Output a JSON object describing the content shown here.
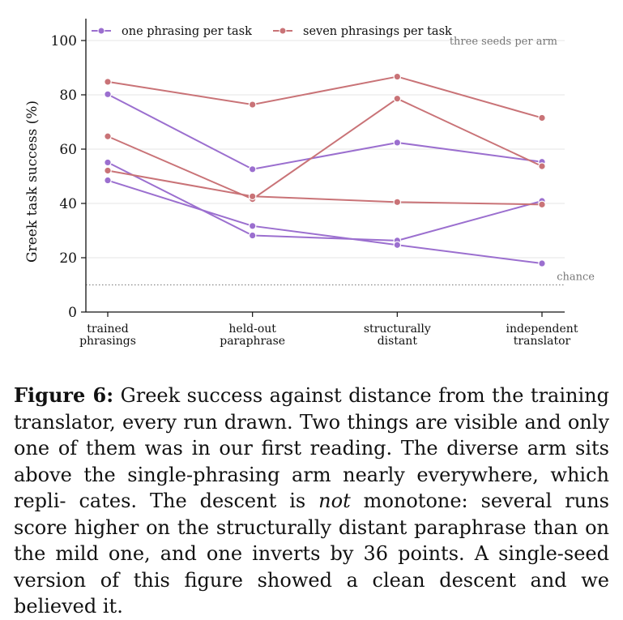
{
  "chart_data": {
    "type": "line",
    "ylabel": "Greek task success (%)",
    "ylim": [
      0,
      100
    ],
    "yticks": [
      0,
      20,
      40,
      60,
      80,
      100
    ],
    "categories": [
      "trained\nphrasings",
      "held-out\nparaphrase",
      "structurally\ndistant",
      "independent\ntranslator"
    ],
    "grid": "horizontal",
    "legend_position": "top-left",
    "arms": [
      {
        "name": "one phrasing per task",
        "color": "#9b6fcf"
      },
      {
        "name": "seven phrasings per task",
        "color": "#c97377"
      }
    ],
    "series": [
      {
        "arm": 0,
        "values": [
          80.2,
          52.6,
          62.4,
          55.3
        ]
      },
      {
        "arm": 0,
        "values": [
          55.1,
          28.2,
          26.3,
          40.9
        ]
      },
      {
        "arm": 0,
        "values": [
          48.5,
          31.7,
          24.7,
          17.9
        ]
      },
      {
        "arm": 1,
        "values": [
          84.8,
          76.4,
          86.7,
          71.5
        ]
      },
      {
        "arm": 1,
        "values": [
          64.7,
          41.6,
          78.6,
          53.7
        ]
      },
      {
        "arm": 1,
        "values": [
          52.1,
          42.6,
          40.5,
          39.6
        ]
      }
    ],
    "chance": {
      "value": 10,
      "label": "chance"
    },
    "annotation": "three seeds per arm"
  },
  "caption": {
    "label": "Figure 6:",
    "lines": [
      " Greek success against distance from the training",
      "translator, every run drawn. Two things are visible and only",
      "one of them was in our first reading.  The diverse arm sits",
      "above the single-phrasing arm nearly everywhere, which repli-",
      "cates. The descent is ",
      "not",
      " monotone: several runs score higher",
      "on the structurally distant paraphrase than on the mild one,",
      "and one inverts by 36 points.  A single-seed version of this",
      "figure showed a clean descent and we believed it."
    ]
  }
}
